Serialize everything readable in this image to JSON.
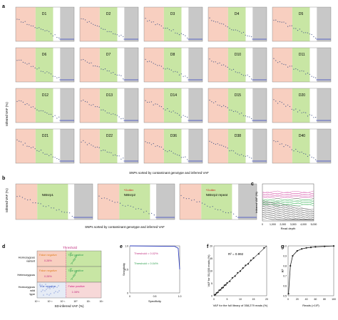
{
  "colors": {
    "red_zone": "#f8cfc0",
    "green_zone": "#c8e6a4",
    "grey_zone": "#c8c8c8",
    "white_zone": "#ffffff",
    "dots": "#4a5a8a",
    "trace_blue": "#3040c0",
    "pink": "#d040a0",
    "green": "#30b050",
    "grey": "#606060"
  },
  "panels": {
    "a": {
      "letter": "a",
      "ylabel": "Inferred VAF (%)",
      "xlabel": "SNPs sorted by contaminant genotype and inferred VAF",
      "tiles": [
        "D1",
        "D2",
        "D3",
        "D4",
        "D5",
        "D6",
        "D7",
        "D8",
        "D10",
        "D11",
        "D12",
        "D13",
        "D14",
        "D15",
        "D20",
        "D21",
        "D22",
        "D36",
        "D38",
        "D40"
      ]
    },
    "b": {
      "letter": "b",
      "ylabel": "Inferred VAF (%)",
      "xlabel": "SNPs sorted by contaminant genotype and inferred VAF",
      "tiles": [
        {
          "label": "NIBsrp1",
          "outlier": ""
        },
        {
          "label": "NIBsrp2",
          "outlier": "*Outlier"
        },
        {
          "label": "NIBsrp2 repeat",
          "outlier": "*Outlier"
        }
      ]
    },
    "c": {
      "letter": "c",
      "ylabel": "Inferred VAF (%)",
      "xlabel": "Read depth",
      "ticks": [
        "0",
        "1,000",
        "2,000",
        "3,000",
        "4,000",
        "5,000"
      ]
    },
    "d": {
      "letter": "d",
      "title": "Threshold",
      "row_labels": [
        "Homozygous variant",
        "Heterozygous",
        "Homozygous wild type"
      ],
      "cells": [
        "False negative",
        "True positive",
        "False negative",
        "True positive",
        "True negative",
        "False positive"
      ],
      "pcts": [
        "0.28%",
        "0.28%",
        "1.08%"
      ],
      "xlabel": "SD-inferred VAF (%)",
      "xticks": [
        "10⁻³",
        "10⁻²",
        "10⁻¹",
        "10⁰",
        "10¹",
        "10²"
      ]
    },
    "e": {
      "letter": "e",
      "ylabel": "Sensitivity",
      "xlabel": "Specificity",
      "thresholds": [
        "Threshold = 0.02%",
        "Threshold = 0.04%"
      ],
      "ticks": [
        "0",
        "0.5",
        "1.0"
      ]
    },
    "f": {
      "letter": "f",
      "annotation": "R² = 0.992",
      "ylabel": "VAF for 50,000 reads (%)",
      "xlabel": "VAF for the full library of 358,279 reads (%)",
      "ticks": [
        "0",
        "5",
        "10",
        "15",
        "20"
      ]
    },
    "g": {
      "letter": "g",
      "ylabel": "R²",
      "xlabel": "Reads (×10³)",
      "xticks": [
        "0",
        "20",
        "40",
        "60",
        "80",
        "100"
      ],
      "yticks": [
        "0.5",
        "0.6",
        "0.7",
        "0.8",
        "0.9",
        "1.0"
      ]
    }
  },
  "chart_data": [
    {
      "type": "line",
      "x": [
        1,
        5,
        10,
        20,
        30,
        40,
        50,
        60,
        80,
        100
      ],
      "series": [
        {
          "values": [
            0.52,
            0.8,
            0.9,
            0.95,
            0.97,
            0.98,
            0.985,
            0.99,
            0.995,
            0.999
          ]
        }
      ],
      "xlabel": "Reads (×10³)",
      "ylabel": "R²",
      "xlim": [
        0,
        100
      ],
      "ylim": [
        0.5,
        1.0
      ]
    },
    {
      "type": "scatter",
      "x": [
        0.3,
        0.6,
        1.0,
        1.5,
        2.0,
        2.5,
        3.0,
        3.5,
        4.0,
        4.5,
        5.0,
        6.0,
        7.0,
        8.0,
        9.0,
        10.0,
        11.0,
        12.0,
        13.0,
        14.0,
        15.0,
        17.0,
        19.0
      ],
      "y": [
        0.4,
        0.5,
        1.1,
        1.4,
        2.2,
        2.4,
        3.1,
        3.3,
        4.2,
        4.4,
        5.1,
        5.8,
        7.2,
        7.9,
        9.2,
        9.9,
        11.1,
        12.2,
        12.8,
        14.2,
        15.1,
        16.8,
        19.2
      ],
      "xlabel": "VAF for the full library of 358,279 reads (%)",
      "ylabel": "VAF for 50,000 reads (%)",
      "xlim": [
        0,
        20
      ],
      "ylim": [
        0,
        20
      ]
    },
    {
      "type": "line",
      "series": [
        {
          "x": [
            0.0,
            0.9,
            0.97,
            1.0
          ],
          "values": [
            1.0,
            0.99,
            0.95,
            0.5
          ]
        }
      ],
      "xlabel": "Specificity",
      "ylabel": "Sensitivity",
      "xlim": [
        0,
        1
      ],
      "ylim": [
        0,
        1
      ]
    }
  ]
}
